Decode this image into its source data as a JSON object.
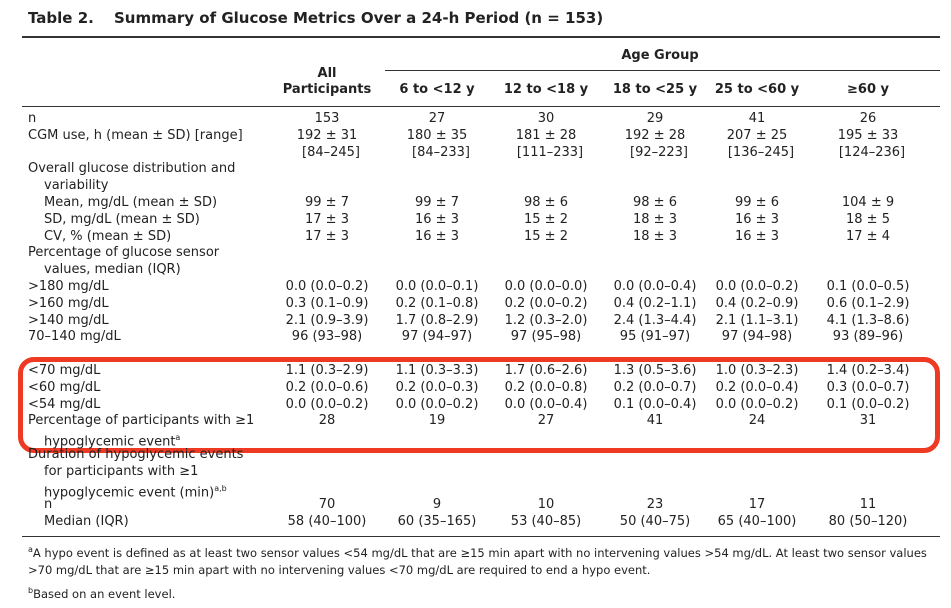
{
  "header": {
    "table_number": "Table 2.",
    "title": "Summary of Glucose Metrics Over a 24-h Period (n = 153)"
  },
  "table": {
    "group_header": "Age Group",
    "columns": [
      [
        "All",
        "Participants"
      ],
      [
        "6 to <12 y"
      ],
      [
        "12 to <18 y"
      ],
      [
        "18 to <25 y"
      ],
      [
        "25 to <60 y"
      ],
      [
        "≥60 y"
      ]
    ],
    "rows": [
      {
        "label": [
          "n"
        ],
        "values": [
          "153",
          "27",
          "30",
          "29",
          "41",
          "26"
        ]
      },
      {
        "label": [
          "CGM use, h (mean ± SD) [range]"
        ],
        "values": [
          [
            "192 ± 31",
            "[84–245]"
          ],
          [
            "180 ± 35",
            "[84–233]"
          ],
          [
            "181 ± 28",
            "[111–233]"
          ],
          [
            "192 ± 28",
            "[92–223]"
          ],
          [
            "207 ± 25",
            "[136–245]"
          ],
          [
            "195 ± 33",
            "[124–236]"
          ]
        ]
      },
      {
        "label": [
          "Overall glucose distribution and",
          "variability"
        ]
      },
      {
        "label": [
          "Mean, mg/dL (mean ± SD)"
        ],
        "values": [
          "99 ± 7",
          "99 ± 7",
          "98 ± 6",
          "98 ± 6",
          "99 ± 6",
          "104 ± 9"
        ]
      },
      {
        "label": [
          "SD, mg/dL (mean ± SD)"
        ],
        "values": [
          "17 ± 3",
          "16 ± 3",
          "15 ± 2",
          "18 ± 3",
          "16 ± 3",
          "18 ± 5"
        ]
      },
      {
        "label": [
          "CV, % (mean ± SD)"
        ],
        "values": [
          "17 ± 3",
          "16 ± 3",
          "15 ± 2",
          "18 ± 3",
          "16 ± 3",
          "17 ± 4"
        ]
      },
      {
        "label": [
          "Percentage of glucose sensor",
          "values, median (IQR)"
        ]
      },
      {
        "label": [
          ">180 mg/dL"
        ],
        "values": [
          "0.0 (0.0–0.2)",
          "0.0 (0.0–0.1)",
          "0.0 (0.0–0.0)",
          "0.0 (0.0–0.4)",
          "0.0 (0.0–0.2)",
          "0.1 (0.0–0.5)"
        ]
      },
      {
        "label": [
          ">160 mg/dL"
        ],
        "values": [
          "0.3 (0.1–0.9)",
          "0.2 (0.1–0.8)",
          "0.2 (0.0–0.2)",
          "0.4 (0.2–1.1)",
          "0.4 (0.2–0.9)",
          "0.6 (0.1–2.9)"
        ]
      },
      {
        "label": [
          ">140 mg/dL"
        ],
        "values": [
          "2.1 (0.9–3.9)",
          "1.7 (0.8–2.9)",
          "1.2 (0.3–2.0)",
          "2.4 (1.3–4.4)",
          "2.1 (1.1–3.1)",
          "4.1 (1.3–8.6)"
        ]
      },
      {
        "label": [
          "70–140 mg/dL"
        ],
        "values": [
          "96 (93–98)",
          "97 (94–97)",
          "97 (95–98)",
          "95 (91–97)",
          "97 (94–98)",
          "93 (89–96)"
        ]
      },
      {
        "label": [
          "<70 mg/dL"
        ],
        "values": [
          "1.1 (0.3–2.9)",
          "1.1 (0.3–3.3)",
          "1.7 (0.6–2.6)",
          "1.3 (0.5–3.6)",
          "1.0 (0.3–2.3)",
          "1.4 (0.2–3.4)"
        ]
      },
      {
        "label": [
          "<60 mg/dL"
        ],
        "values": [
          "0.2 (0.0–0.6)",
          "0.2 (0.0–0.3)",
          "0.2 (0.0–0.8)",
          "0.2 (0.0–0.7)",
          "0.2 (0.0–0.4)",
          "0.3 (0.0–0.7)"
        ]
      },
      {
        "label": [
          "<54 mg/dL"
        ],
        "values": [
          "0.0 (0.0–0.2)",
          "0.0 (0.0–0.2)",
          "0.0 (0.0–0.4)",
          "0.1 (0.0–0.4)",
          "0.0 (0.0–0.2)",
          "0.1 (0.0–0.2)"
        ]
      },
      {
        "label": [
          "Percentage of participants with ≥1",
          "hypoglycemic event"
        ],
        "label_sup": "a",
        "values": [
          "28",
          "19",
          "27",
          "41",
          "24",
          "31"
        ]
      },
      {
        "label": [
          "Duration of hypoglycemic events",
          "for participants with ≥1",
          "hypoglycemic event (min)"
        ],
        "label_sup": "a,b"
      },
      {
        "label": [
          "n"
        ],
        "values": [
          "70",
          "9",
          "10",
          "23",
          "17",
          "11"
        ]
      },
      {
        "label": [
          "Median (IQR)"
        ],
        "values": [
          "58 (40–100)",
          "60 (35–165)",
          "53 (40–85)",
          "50 (40–75)",
          "65 (40–100)",
          "80 (50–120)"
        ]
      }
    ]
  },
  "notes": [
    {
      "mark": "a",
      "text": "A hypo event is defined as at least two sensor values <54 mg/dL that are ≥15 min apart with no intervening values >54 mg/dL. At least two sensor values >70 mg/dL that are ≥15 min apart with no intervening values <70 mg/dL are required to end a hypo event."
    },
    {
      "mark": "b",
      "text": "Based on an event level."
    }
  ]
}
